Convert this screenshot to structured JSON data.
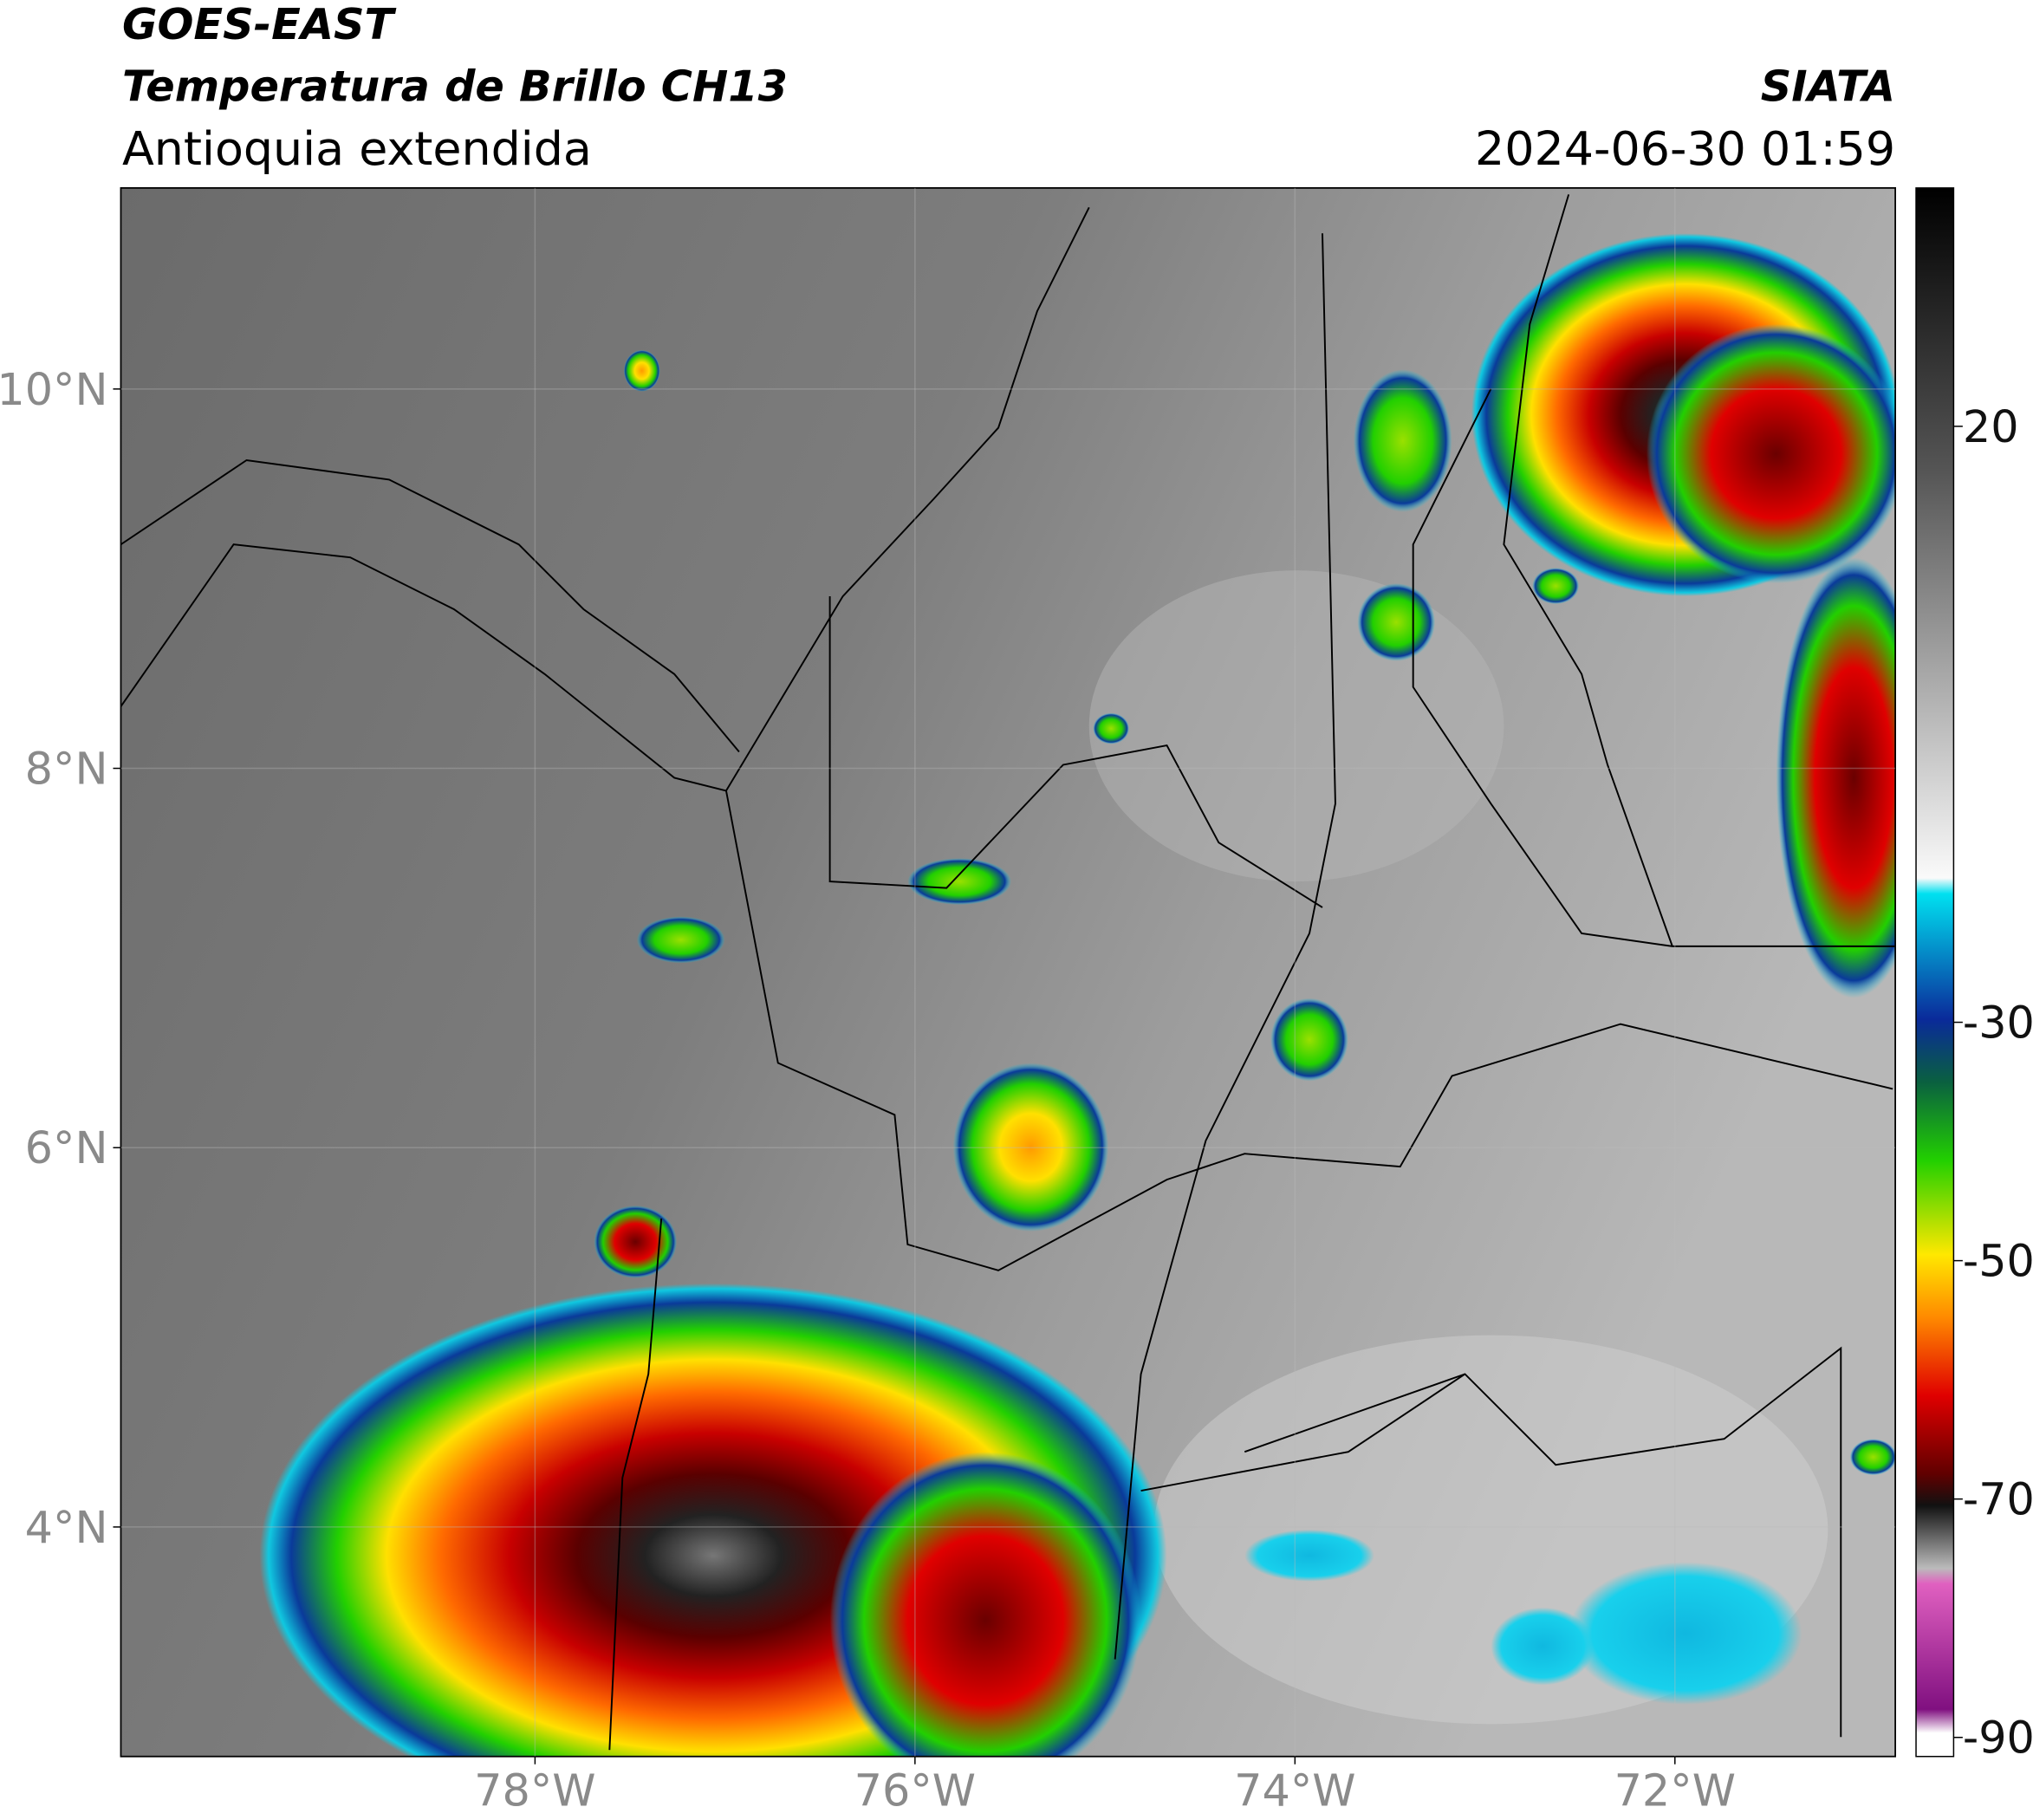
{
  "header": {
    "satellite": "GOES-EAST",
    "product": "Temperatura de Brillo CH13",
    "region": "Antioquia extendida",
    "source": "SIATA",
    "datetime": "2024-06-30 01:59"
  },
  "map": {
    "lonlim": [
      -80.18,
      -70.84
    ],
    "latlim": [
      2.79,
      11.06
    ],
    "lonticks": [
      {
        "value": -78,
        "label": "78°W"
      },
      {
        "value": -76,
        "label": "76°W"
      },
      {
        "value": -74,
        "label": "74°W"
      },
      {
        "value": -72,
        "label": "72°W"
      }
    ],
    "latticks": [
      {
        "value": 4,
        "label": "4°N"
      },
      {
        "value": 6,
        "label": "6°N"
      },
      {
        "value": 8,
        "label": "8°N"
      },
      {
        "value": 10,
        "label": "10°N"
      }
    ]
  },
  "colorbar": {
    "lim": [
      -91.6,
      40
    ],
    "ticks": [
      -90,
      -70,
      -50,
      -30,
      20
    ]
  }
}
